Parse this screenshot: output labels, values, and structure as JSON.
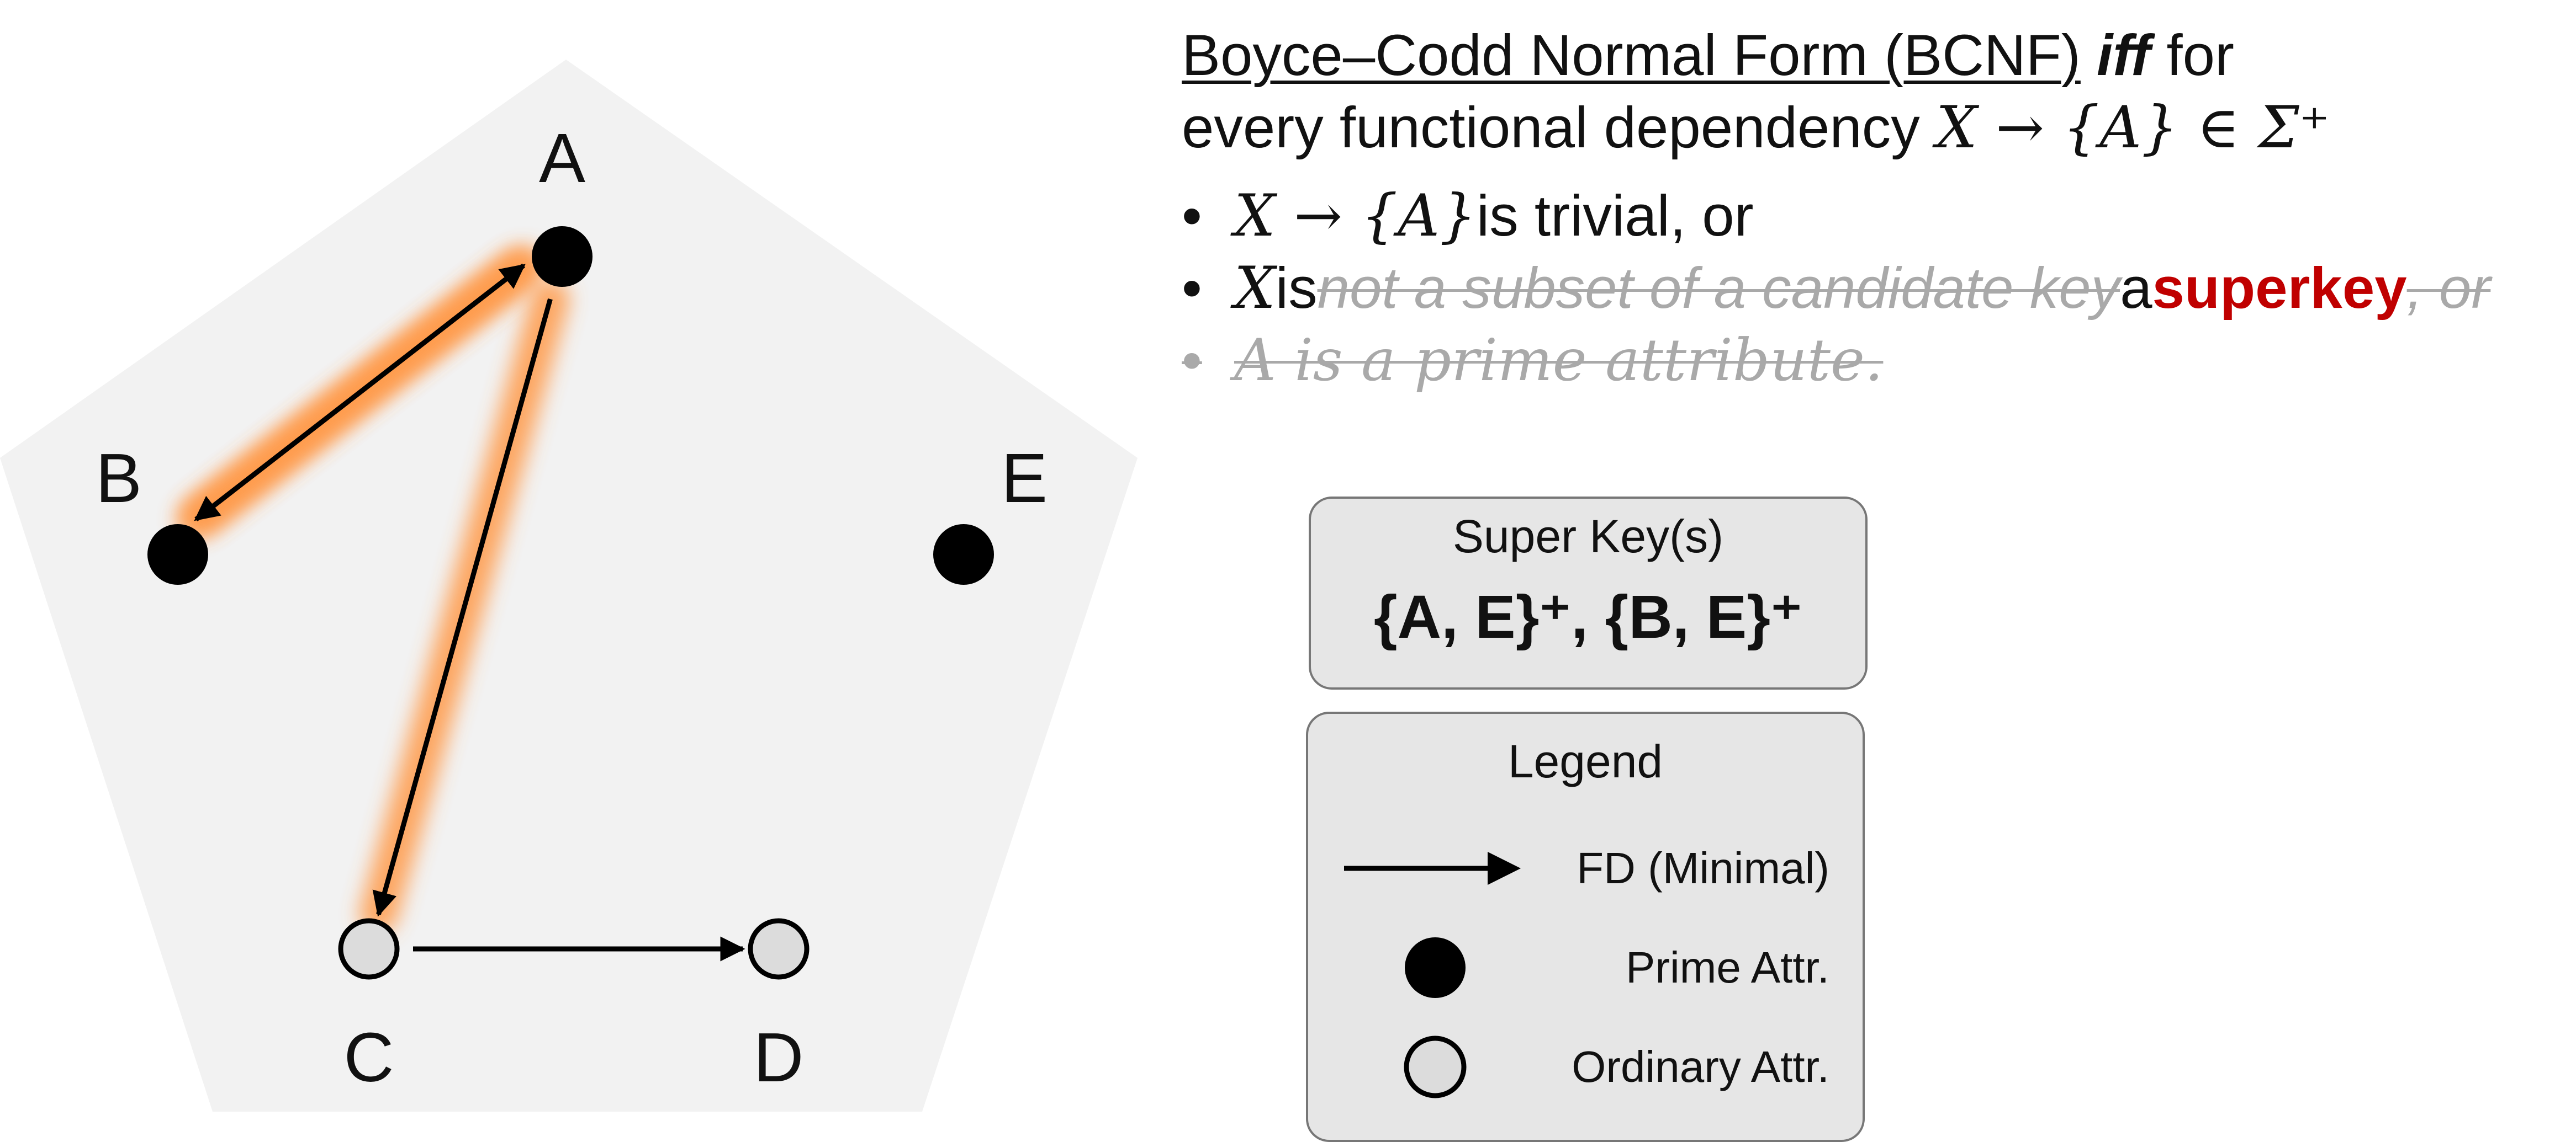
{
  "diagram": {
    "nodes": [
      {
        "id": "A",
        "label": "A",
        "type": "prime"
      },
      {
        "id": "B",
        "label": "B",
        "type": "prime"
      },
      {
        "id": "C",
        "label": "C",
        "type": "ordinary"
      },
      {
        "id": "D",
        "label": "D",
        "type": "ordinary"
      },
      {
        "id": "E",
        "label": "E",
        "type": "prime"
      }
    ],
    "edges": [
      {
        "from": "A",
        "to": "B",
        "highlighted": true
      },
      {
        "from": "B",
        "to": "A",
        "highlighted": true
      },
      {
        "from": "A",
        "to": "C",
        "highlighted": true
      },
      {
        "from": "C",
        "to": "D",
        "highlighted": true
      }
    ],
    "colors": {
      "pentagon_fill": "#f2f2f2",
      "highlight_glow": "#ff9a4a",
      "prime_fill": "#000000",
      "ordinary_fill": "#dcdcdc",
      "edge": "#000000"
    }
  },
  "definition": {
    "title_underlined": "Boyce–Codd Normal Form (BCNF)",
    "iff": "iff",
    "title_tail": " for",
    "line2_text": "every functional dependency ",
    "line2_math": "X → {A} ∈ Σ⁺",
    "bullet_char": "•",
    "bullet1_math": "X → {A}",
    "bullet1_text": " is trivial, or",
    "bullet2_math": "X",
    "bullet2_is": " is ",
    "bullet2_struck": "not a subset of a candidate key",
    "bullet2_a": " a ",
    "bullet2_superkey": "superkey",
    "bullet2_struck_tail": ", or",
    "bullet3_struck": "A is a prime attribute."
  },
  "superkeys": {
    "title": "Super Key(s)",
    "value": "{A, E}⁺, {B, E}⁺"
  },
  "legend": {
    "title": "Legend",
    "items": [
      {
        "icon": "arrow-icon",
        "label": "FD (Minimal)"
      },
      {
        "icon": "filled-circle-icon",
        "label": "Prime Attr."
      },
      {
        "icon": "hollow-circle-icon",
        "label": "Ordinary Attr."
      }
    ]
  },
  "colors": {
    "accent": "#c00000",
    "struck_text": "#a9a9a9",
    "box_fill": "#e6e6e6",
    "box_border": "#777777"
  }
}
